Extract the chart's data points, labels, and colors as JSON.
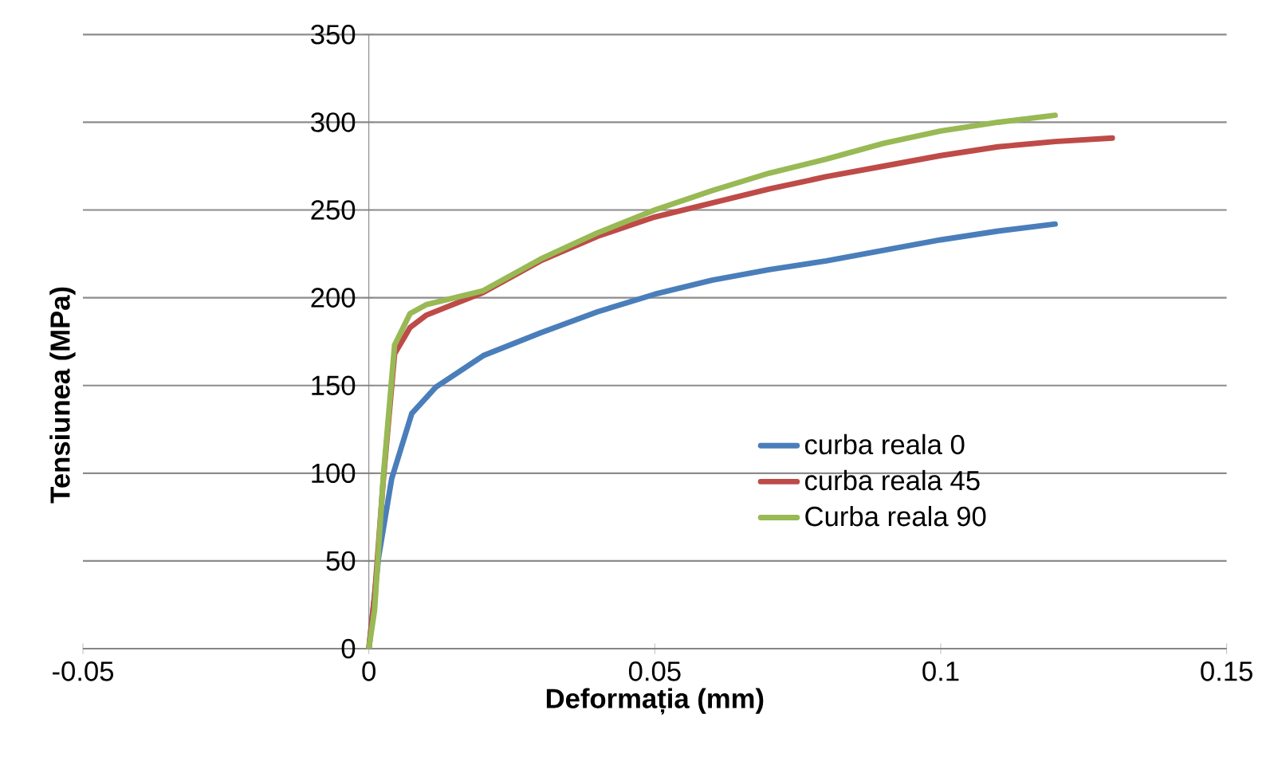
{
  "chart_data": {
    "type": "line",
    "xlabel": "Deformația (mm)",
    "ylabel": "Tensiunea (MPa)",
    "xlim": [
      -0.05,
      0.15
    ],
    "xticks": [
      -0.05,
      0,
      0.05,
      0.1,
      0.15
    ],
    "ylim": [
      0,
      350
    ],
    "yticks": [
      0,
      50,
      100,
      150,
      200,
      250,
      300,
      350
    ],
    "grid": "y",
    "legend": "right",
    "marker": "none",
    "line_style": "solid",
    "series": [
      {
        "name": "curba reala 0",
        "color": "#4a7ebb",
        "x": [
          0,
          0.0017,
          0.004,
          0.0075,
          0.0117,
          0.02,
          0.03,
          0.04,
          0.05,
          0.06,
          0.07,
          0.08,
          0.09,
          0.1,
          0.11,
          0.12
        ],
        "values": [
          0,
          52,
          97,
          134,
          149,
          167,
          180,
          192,
          202,
          210,
          216,
          221,
          227,
          233,
          238,
          242
        ]
      },
      {
        "name": "curba reala 45",
        "color": "#be4b48",
        "x": [
          0,
          0.001,
          0.0025,
          0.0045,
          0.0072,
          0.01,
          0.02,
          0.03,
          0.04,
          0.05,
          0.06,
          0.07,
          0.08,
          0.09,
          0.1,
          0.11,
          0.12,
          0.13
        ],
        "values": [
          0,
          30,
          95,
          168,
          183,
          190,
          203,
          221,
          235,
          246,
          254,
          262,
          269,
          275,
          281,
          286,
          289,
          291
        ]
      },
      {
        "name": "Curba reala 90",
        "color": "#98b954",
        "x": [
          0,
          0.001,
          0.0025,
          0.0045,
          0.0072,
          0.01,
          0.02,
          0.03,
          0.04,
          0.05,
          0.06,
          0.07,
          0.08,
          0.09,
          0.1,
          0.11,
          0.12
        ],
        "values": [
          0,
          22,
          97,
          173,
          191,
          196,
          204,
          222,
          237,
          250,
          261,
          271,
          279,
          288,
          295,
          300,
          304
        ]
      }
    ]
  }
}
